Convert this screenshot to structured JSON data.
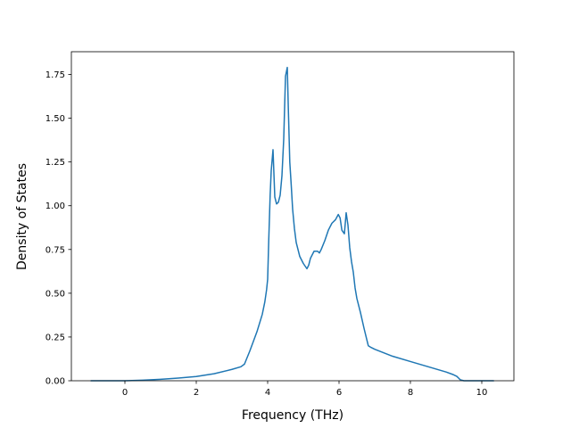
{
  "chart_data": {
    "type": "line",
    "title": "",
    "xlabel": "Frequency (THz)",
    "ylabel": "Density of States",
    "xlim": [
      -1.5,
      10.9
    ],
    "ylim": [
      0.0,
      1.88
    ],
    "xticks": [
      0,
      2,
      4,
      6,
      8,
      10
    ],
    "xtick_labels": [
      "0",
      "2",
      "4",
      "6",
      "8",
      "10"
    ],
    "yticks": [
      0.0,
      0.25,
      0.5,
      0.75,
      1.0,
      1.25,
      1.5,
      1.75
    ],
    "ytick_labels": [
      "0.00",
      "0.25",
      "0.50",
      "0.75",
      "1.00",
      "1.25",
      "1.50",
      "1.75"
    ],
    "grid": false,
    "legend": "none",
    "series": [
      {
        "color": "#1f77b4",
        "x": [
          -0.95,
          0.0,
          0.5,
          1.0,
          1.5,
          2.0,
          2.5,
          3.0,
          3.25,
          3.35,
          3.5,
          3.7,
          3.85,
          3.92,
          3.97,
          4.0,
          4.03,
          4.07,
          4.1,
          4.15,
          4.2,
          4.25,
          4.3,
          4.35,
          4.4,
          4.45,
          4.5,
          4.55,
          4.58,
          4.62,
          4.66,
          4.7,
          4.75,
          4.8,
          4.9,
          5.0,
          5.1,
          5.15,
          5.2,
          5.3,
          5.4,
          5.45,
          5.5,
          5.6,
          5.7,
          5.8,
          5.9,
          5.98,
          6.03,
          6.08,
          6.15,
          6.2,
          6.25,
          6.3,
          6.35,
          6.4,
          6.45,
          6.5,
          6.6,
          6.7,
          6.82,
          6.9,
          7.0,
          7.5,
          8.0,
          8.5,
          9.0,
          9.2,
          9.3,
          9.4,
          9.5,
          10.0,
          10.33
        ],
        "y": [
          0.0,
          0.0,
          0.003,
          0.008,
          0.015,
          0.024,
          0.04,
          0.065,
          0.08,
          0.095,
          0.17,
          0.28,
          0.38,
          0.45,
          0.52,
          0.58,
          0.8,
          1.06,
          1.2,
          1.32,
          1.05,
          1.01,
          1.02,
          1.06,
          1.17,
          1.38,
          1.74,
          1.79,
          1.55,
          1.25,
          1.12,
          0.98,
          0.87,
          0.79,
          0.71,
          0.67,
          0.64,
          0.66,
          0.7,
          0.74,
          0.74,
          0.73,
          0.75,
          0.8,
          0.86,
          0.9,
          0.92,
          0.95,
          0.93,
          0.86,
          0.84,
          0.96,
          0.89,
          0.76,
          0.68,
          0.62,
          0.53,
          0.47,
          0.39,
          0.3,
          0.2,
          0.19,
          0.18,
          0.14,
          0.11,
          0.08,
          0.05,
          0.035,
          0.025,
          0.005,
          0.0,
          0.0,
          0.0
        ]
      }
    ]
  }
}
